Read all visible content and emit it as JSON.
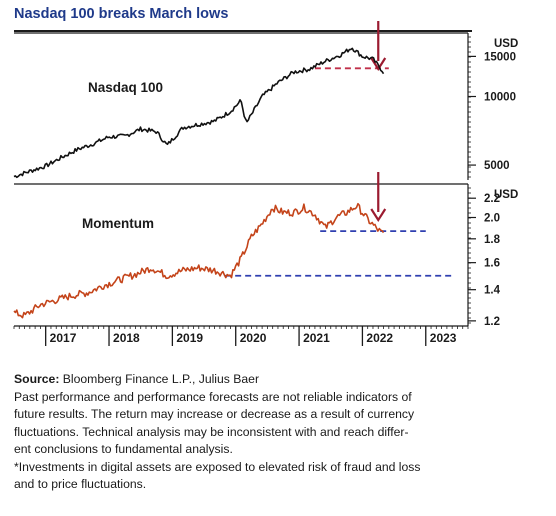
{
  "title": "Nasdaq 100 breaks March lows",
  "chart_data": [
    {
      "type": "line",
      "label": "Nasdaq 100",
      "unit": "USD",
      "yscale": "log",
      "ylim": [
        4300,
        19000
      ],
      "yticks": [
        5000,
        10000,
        15000
      ],
      "line_color": "#111111",
      "x": [
        "2016-07",
        "2016-10",
        "2017-01",
        "2017-04",
        "2017-07",
        "2017-10",
        "2018-01",
        "2018-04",
        "2018-07",
        "2018-10",
        "2018-12",
        "2019-03",
        "2019-06",
        "2019-09",
        "2019-12",
        "2020-02",
        "2020-03",
        "2020-06",
        "2020-09",
        "2020-12",
        "2021-03",
        "2021-06",
        "2021-09",
        "2021-11",
        "2022-01",
        "2022-03",
        "2022-05"
      ],
      "values": [
        4450,
        4700,
        4950,
        5400,
        5850,
        6200,
        6650,
        6700,
        7200,
        7000,
        6100,
        7300,
        7550,
        7800,
        8600,
        9600,
        7600,
        10000,
        11500,
        12800,
        13200,
        14300,
        15300,
        16400,
        15000,
        14600,
        12800
      ],
      "annotations": [
        {
          "type": "support_line",
          "y": 13300,
          "x_from": "2021-04",
          "x_to": "2022-06",
          "color": "#c0304a",
          "style": "dashed"
        },
        {
          "type": "arrow",
          "x": "2022-04",
          "direction": "down",
          "color": "#9b1b30"
        }
      ]
    },
    {
      "type": "line",
      "label": "Momentum",
      "unit": "USD",
      "yscale": "log",
      "ylim": [
        1.17,
        2.36
      ],
      "yticks": [
        1.2,
        1.4,
        1.6,
        1.8,
        2.0,
        2.2
      ],
      "line_color": "#c4441a",
      "x": [
        "2016-07",
        "2016-09",
        "2016-12",
        "2017-03",
        "2017-06",
        "2017-09",
        "2017-12",
        "2018-03",
        "2018-06",
        "2018-09",
        "2018-12",
        "2019-03",
        "2019-06",
        "2019-09",
        "2019-12",
        "2020-02",
        "2020-04",
        "2020-06",
        "2020-08",
        "2020-10",
        "2020-12",
        "2021-02",
        "2021-04",
        "2021-06",
        "2021-08",
        "2021-10",
        "2021-12",
        "2022-02",
        "2022-04",
        "2022-05"
      ],
      "values": [
        1.25,
        1.23,
        1.3,
        1.33,
        1.36,
        1.38,
        1.43,
        1.47,
        1.51,
        1.56,
        1.5,
        1.54,
        1.56,
        1.54,
        1.5,
        1.63,
        1.82,
        1.94,
        2.1,
        2.05,
        2.05,
        2.1,
        2.03,
        1.9,
        2.0,
        2.05,
        2.12,
        1.98,
        1.88,
        1.84
      ],
      "annotations": [
        {
          "type": "support_line",
          "y": 1.87,
          "x_from": "2021-05",
          "x_to": "2023-01",
          "color": "#2f3fb0",
          "style": "dashed"
        },
        {
          "type": "support_line",
          "y": 1.5,
          "x_from": "2019-11",
          "x_to": "2023-06",
          "color": "#2f3fb0",
          "style": "dashed"
        },
        {
          "type": "arrow",
          "x": "2022-04",
          "direction": "down",
          "color": "#9b1b30"
        }
      ]
    }
  ],
  "x_axis": {
    "type": "time",
    "range": [
      "2016-07",
      "2023-09"
    ],
    "tick_labels": [
      "2017",
      "2018",
      "2019",
      "2020",
      "2021",
      "2022",
      "2023"
    ]
  },
  "footer": {
    "source_label": "Source:",
    "source_text": " Bloomberg Finance L.P., Julius Baer",
    "disclaimer_lines": [
      "Past performance and performance forecasts are not reliable indicators of",
      "future results. The return may increase or decrease as a result of currency",
      "fluctuations. Technical analysis may be inconsistent with and reach differ-",
      "ent conclusions to fundamental analysis.",
      "*Investments in digital assets are exposed to elevated risk of fraud and loss",
      "and to price fluctuations."
    ]
  }
}
